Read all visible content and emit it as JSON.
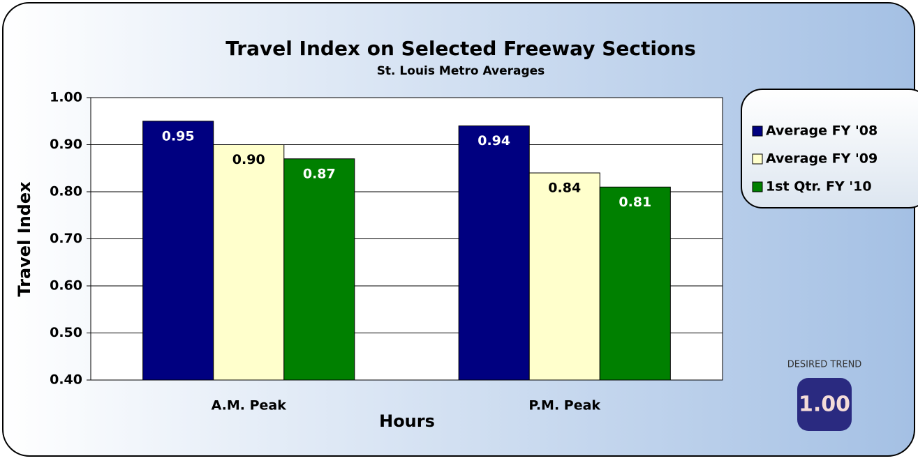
{
  "chart_data": {
    "type": "bar",
    "title": "Travel Index on Selected Freeway Sections",
    "subtitle": "St. Louis Metro Averages",
    "x_label": "Hours",
    "y_label": "Travel Index",
    "categories": [
      "A.M. Peak",
      "P.M. Peak"
    ],
    "series": [
      {
        "name": "Average FY '08",
        "color": "#000080",
        "values": [
          0.95,
          0.94
        ],
        "value_labels": [
          "0.95",
          "0.94"
        ]
      },
      {
        "name": "Average FY '09",
        "color": "#ffffcc",
        "values": [
          0.9,
          0.84
        ],
        "value_labels": [
          "0.90",
          "0.84"
        ]
      },
      {
        "name": "1st Qtr. FY '10",
        "color": "#008000",
        "values": [
          0.87,
          0.81
        ],
        "value_labels": [
          "0.87",
          "0.81"
        ]
      }
    ],
    "ylim": [
      0.4,
      1.0
    ],
    "yticks": [
      {
        "value": 0.4,
        "label": "0.40"
      },
      {
        "value": 0.5,
        "label": "0.50"
      },
      {
        "value": 0.6,
        "label": "0.60"
      },
      {
        "value": 0.7,
        "label": "0.70"
      },
      {
        "value": 0.8,
        "label": "0.80"
      },
      {
        "value": 0.9,
        "label": "0.90"
      },
      {
        "value": 1.0,
        "label": "1.00"
      }
    ],
    "grid": true,
    "legend": "right",
    "annotation": {
      "caption": "DESIRED TREND",
      "value": "1.00"
    }
  }
}
